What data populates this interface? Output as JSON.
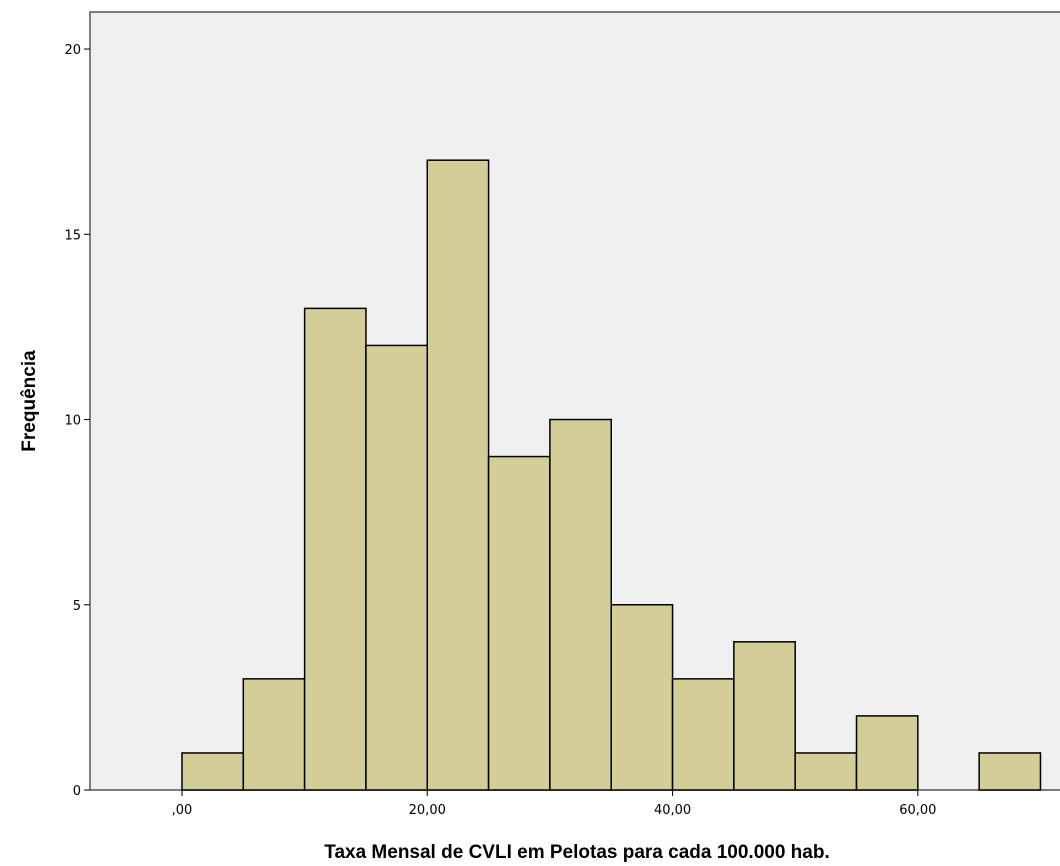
{
  "chart_data": {
    "type": "bar",
    "xlabel": "Taxa Mensal de CVLI em Pelotas para cada 100.000 hab.",
    "ylabel": "Frequência",
    "bin_width": 5,
    "bins": [
      {
        "start": 0,
        "end": 5,
        "count": 1
      },
      {
        "start": 5,
        "end": 10,
        "count": 3
      },
      {
        "start": 10,
        "end": 15,
        "count": 13
      },
      {
        "start": 15,
        "end": 20,
        "count": 12
      },
      {
        "start": 20,
        "end": 25,
        "count": 17
      },
      {
        "start": 25,
        "end": 30,
        "count": 9
      },
      {
        "start": 30,
        "end": 35,
        "count": 10
      },
      {
        "start": 35,
        "end": 40,
        "count": 5
      },
      {
        "start": 40,
        "end": 45,
        "count": 3
      },
      {
        "start": 45,
        "end": 50,
        "count": 4
      },
      {
        "start": 50,
        "end": 55,
        "count": 1
      },
      {
        "start": 55,
        "end": 60,
        "count": 2
      },
      {
        "start": 65,
        "end": 70,
        "count": 1
      }
    ],
    "xticks": [
      {
        "value": 0,
        "label": ",00"
      },
      {
        "value": 20,
        "label": "20,00"
      },
      {
        "value": 40,
        "label": "40,00"
      },
      {
        "value": 60,
        "label": "60,00"
      }
    ],
    "yticks": [
      {
        "value": 0,
        "label": "0"
      },
      {
        "value": 5,
        "label": "5"
      },
      {
        "value": 10,
        "label": "10"
      },
      {
        "value": 15,
        "label": "15"
      },
      {
        "value": 20,
        "label": "20"
      }
    ],
    "xlim": [
      -7.5,
      72
    ],
    "ylim": [
      0,
      21
    ],
    "grid": false,
    "colors": {
      "bar_fill": "#d3ce97",
      "bar_stroke": "#000000",
      "plot_background": "#f0f0f0",
      "frame": "#555555"
    }
  }
}
